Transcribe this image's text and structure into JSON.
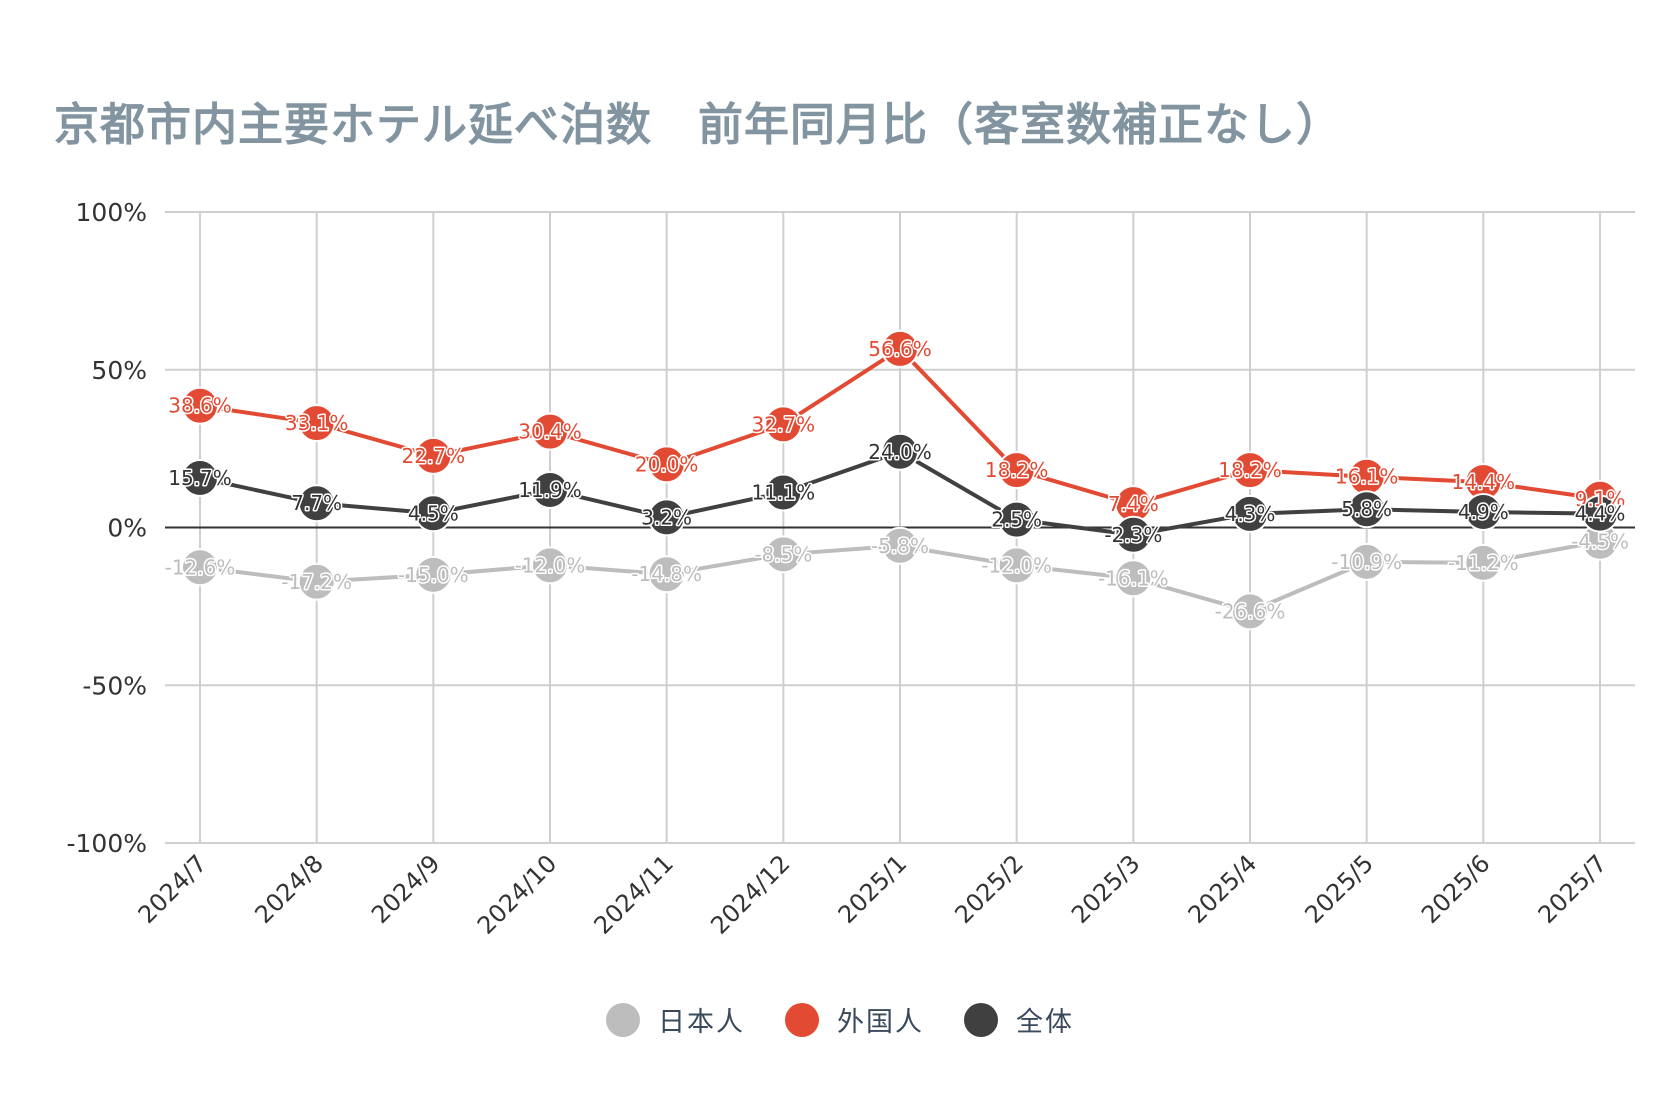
{
  "chart_data": {
    "type": "line",
    "title": "京都市内主要ホテル延べ泊数　前年同月比（客室数補正なし）",
    "categories": [
      "2024/7",
      "2024/8",
      "2024/9",
      "2024/10",
      "2024/11",
      "2024/12",
      "2025/1",
      "2025/2",
      "2025/3",
      "2025/4",
      "2025/5",
      "2025/6",
      "2025/7"
    ],
    "ylim": [
      -100,
      100
    ],
    "yticks": [
      100,
      50,
      0,
      -50,
      -100
    ],
    "ytick_labels": [
      "100%",
      "50%",
      "0%",
      "-50%",
      "-100%"
    ],
    "grid": true,
    "legend_position": "bottom",
    "series": [
      {
        "name": "日本人",
        "color": "#bdbdbd",
        "label_color": "#bdbdbd",
        "values": [
          -12.6,
          -17.2,
          -15.0,
          -12.0,
          -14.8,
          -8.5,
          -5.8,
          -12.0,
          -16.1,
          -26.6,
          -10.9,
          -11.2,
          -4.5
        ],
        "labels": [
          "-12.6%",
          "-17.2%",
          "-15.0%",
          "-12.0%",
          "-14.8%",
          "-8.5%",
          "-5.8%",
          "-12.0%",
          "-16.1%",
          "-26.6%",
          "-10.9%",
          "-11.2%",
          "-4.5%"
        ]
      },
      {
        "name": "外国人",
        "color": "#e34a33",
        "label_color": "#e34a33",
        "values": [
          38.6,
          33.1,
          22.7,
          30.4,
          20.0,
          32.7,
          56.6,
          18.2,
          7.4,
          18.2,
          16.1,
          14.4,
          9.1
        ],
        "labels": [
          "38.6%",
          "33.1%",
          "22.7%",
          "30.4%",
          "20.0%",
          "32.7%",
          "56.6%",
          "18.2%",
          "7.4%",
          "18.2%",
          "16.1%",
          "14.4%",
          "9.1%"
        ]
      },
      {
        "name": "全体",
        "color": "#404040",
        "label_color": "#333333",
        "values": [
          15.7,
          7.7,
          4.5,
          11.9,
          3.2,
          11.1,
          24.0,
          2.5,
          -2.3,
          4.3,
          5.8,
          4.9,
          4.4
        ],
        "labels": [
          "15.7%",
          "7.7%",
          "4.5%",
          "11.9%",
          "3.2%",
          "11.1%",
          "24.0%",
          "2.5%",
          "-2.3%",
          "4.3%",
          "5.8%",
          "4.9%",
          "4.4%"
        ]
      }
    ]
  }
}
